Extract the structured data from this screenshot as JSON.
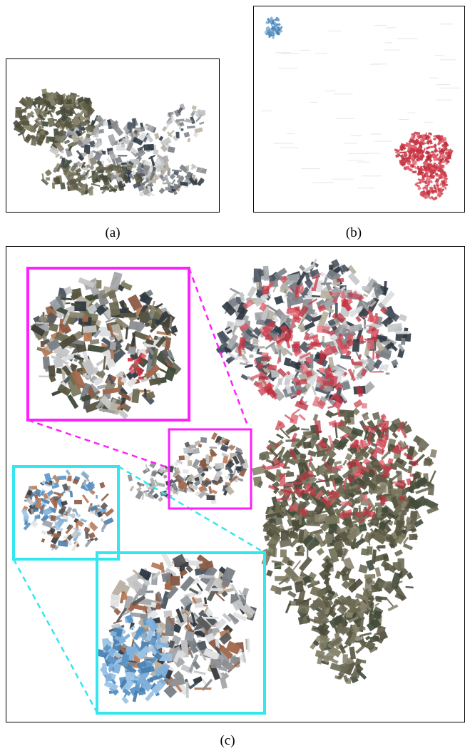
{
  "figure": {
    "captions": {
      "a": "(a)",
      "b": "(b)",
      "c": "(c)"
    }
  },
  "colors": {
    "magenta_highlight": "#ff1fff",
    "cyan_highlight": "#33e6ef",
    "red_points": "#cc3344",
    "blue_points": "#5b95c6",
    "gray_building": "#8c8d90",
    "earth_tone": "#6d6b52"
  }
}
